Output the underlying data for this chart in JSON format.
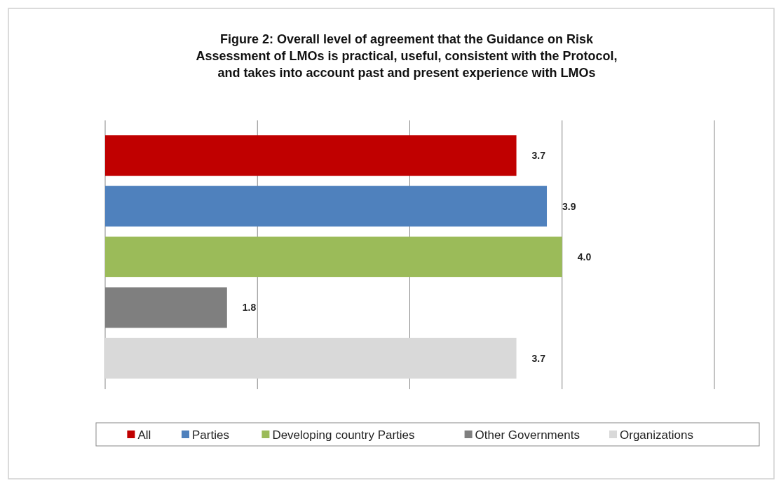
{
  "chart_data": {
    "type": "bar",
    "orientation": "horizontal",
    "title": "Figure 2: Overall level of agreement that the Guidance on Risk Assessment of LMOs is practical, useful, consistent with the Protocol, and takes into account past and present experience with LMOs",
    "categories": [
      null
    ],
    "series": [
      {
        "name": "All",
        "color": "#c00000",
        "values": [
          3.7
        ],
        "value_labels": [
          "3.7"
        ]
      },
      {
        "name": "Parties",
        "color": "#4f81bd",
        "values": [
          3.9
        ],
        "value_labels": [
          "3.9"
        ]
      },
      {
        "name": "Developing country Parties",
        "color": "#9bbb59",
        "values": [
          4.0
        ],
        "value_labels": [
          "4.0"
        ]
      },
      {
        "name": "Other Governments",
        "color": "#7f7f7f",
        "values": [
          1.8
        ],
        "value_labels": [
          "1.8"
        ]
      },
      {
        "name": "Organizations",
        "color": "#d9d9d9",
        "values": [
          3.7
        ],
        "value_labels": [
          "3.7"
        ]
      }
    ],
    "xlim": [
      1,
      5
    ],
    "xticks": [
      {
        "value": 1,
        "label": null
      },
      {
        "value": 2,
        "label": null
      },
      {
        "value": 3,
        "label": null
      },
      {
        "value": 4,
        "label": null
      },
      {
        "value": 5,
        "label": null
      }
    ],
    "grid": "x",
    "legend": "bottom"
  }
}
